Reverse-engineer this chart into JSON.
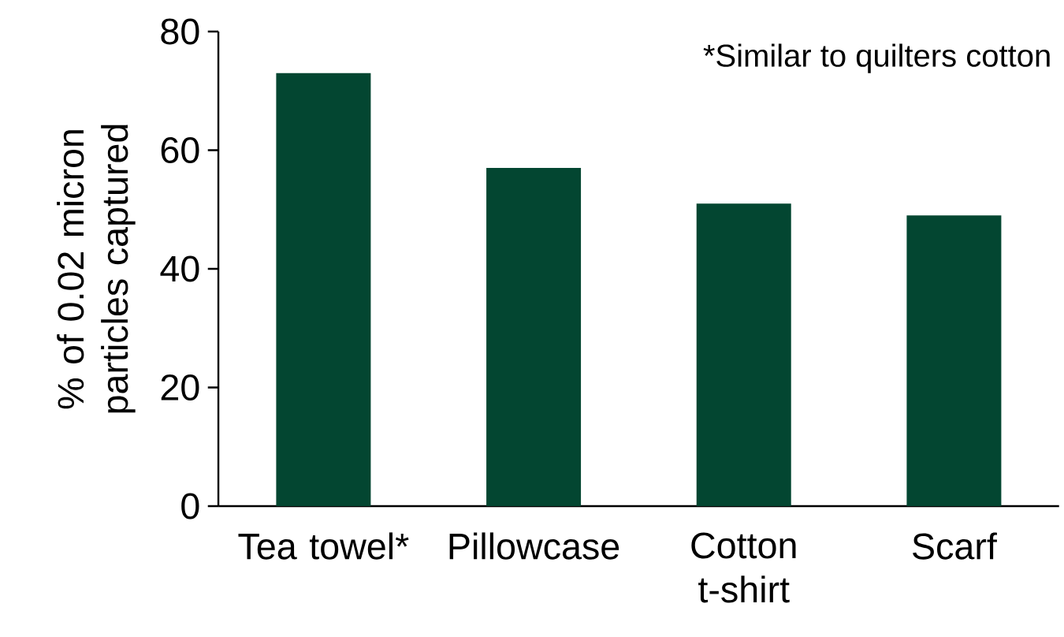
{
  "chart_data": {
    "type": "bar",
    "ylabel": "% of 0.02 micron particles captured",
    "categories": [
      "Tea towel*",
      "Pillowcase",
      "Cotton t-shirt",
      "Scarf"
    ],
    "values": [
      73,
      57,
      51,
      49
    ],
    "color": "#034631",
    "ylim": [
      0,
      80
    ],
    "yticks": [
      0,
      20,
      40,
      60,
      80
    ],
    "grid": false,
    "annotations": [
      "*Similar to quilters cotton"
    ]
  }
}
